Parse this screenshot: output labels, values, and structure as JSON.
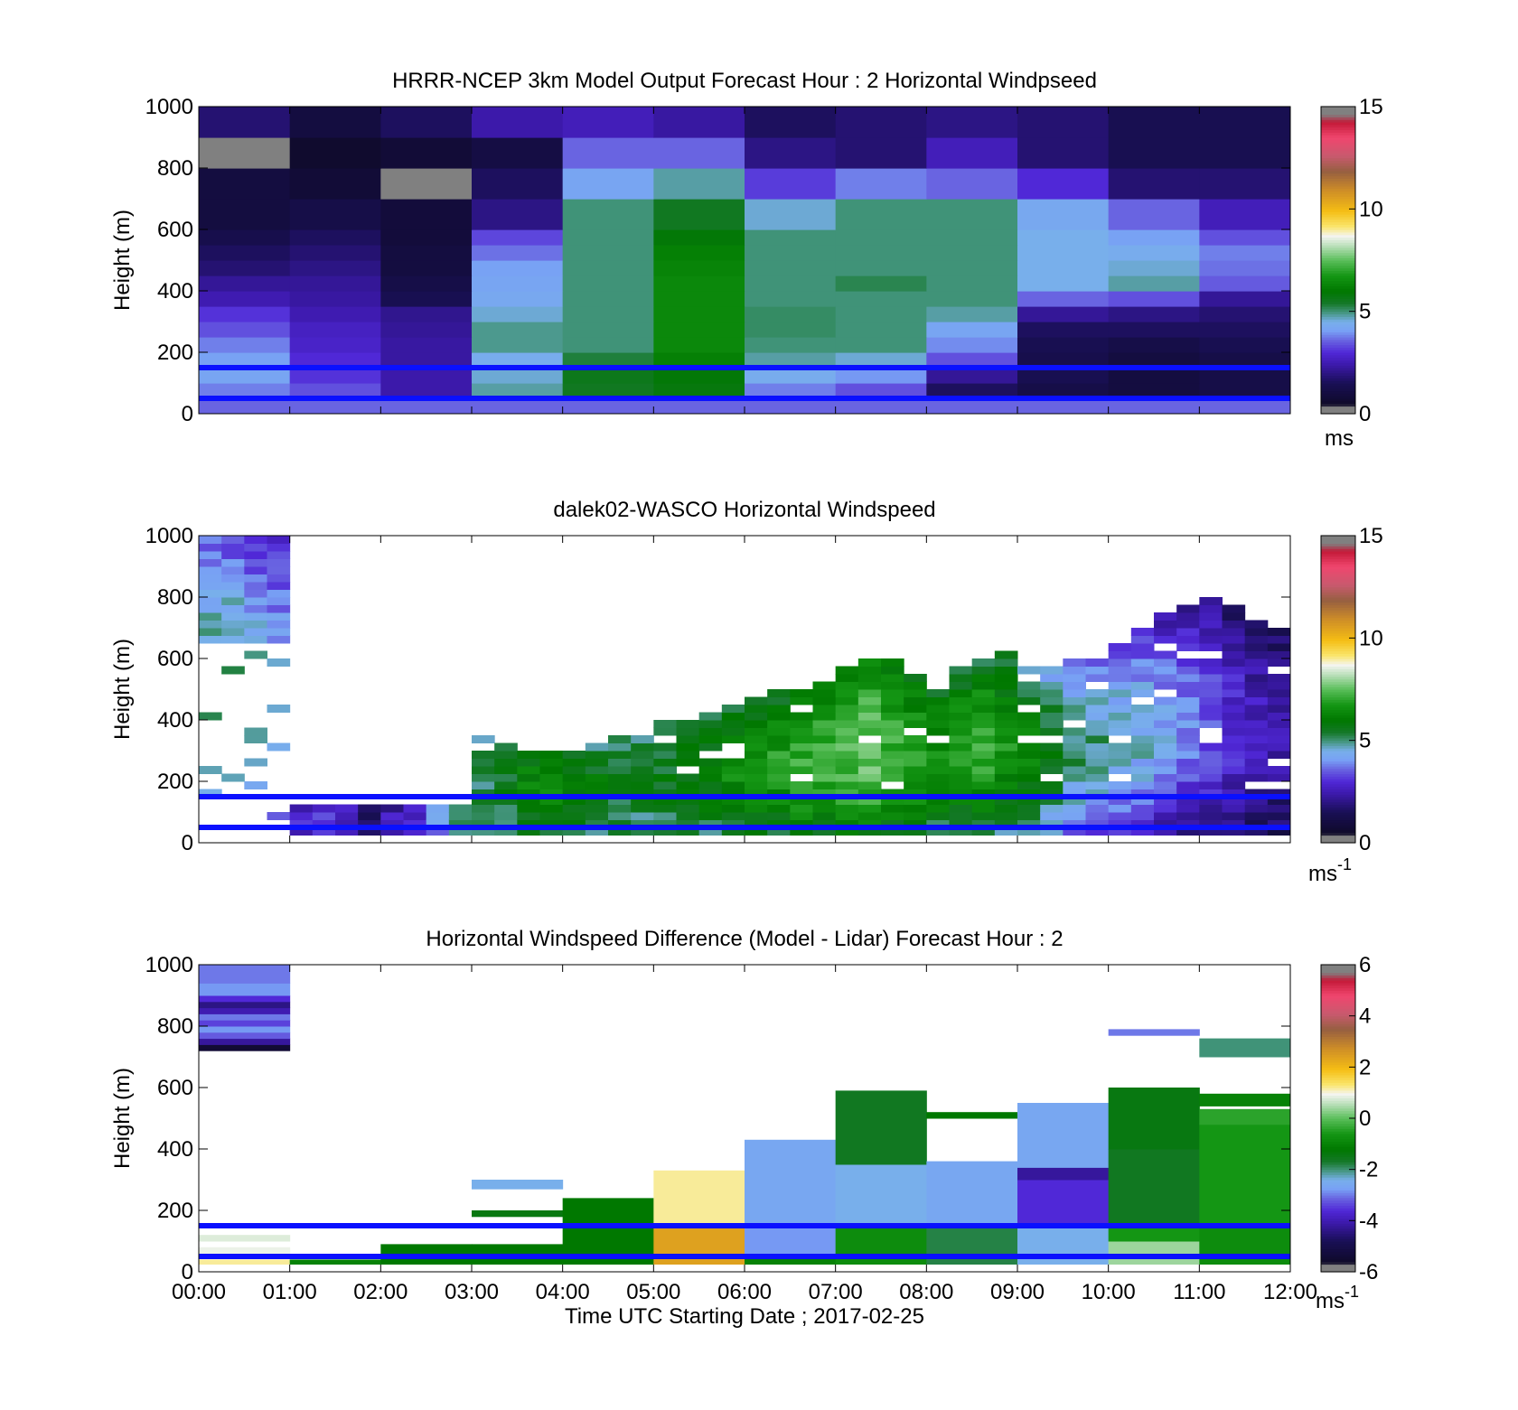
{
  "figure": {
    "xlabel": "Time UTC  Starting Date ; 2017-02-25",
    "x_ticks": [
      "00:00",
      "01:00",
      "02:00",
      "03:00",
      "04:00",
      "05:00",
      "06:00",
      "07:00",
      "08:00",
      "09:00",
      "10:00",
      "11:00",
      "12:00"
    ],
    "ylabel": "Height (m)"
  },
  "chart_data": [
    {
      "type": "heatmap",
      "title": "HRRR-NCEP 3km Model Output   Forecast Hour : 2 Horizontal Windpseed",
      "ylabel": "Height (m)",
      "xlim": [
        0,
        12
      ],
      "ylim": [
        0,
        1000
      ],
      "y_ticks": [
        0,
        200,
        400,
        600,
        800,
        1000
      ],
      "colorbar": {
        "range": [
          0,
          15
        ],
        "ticks": [
          0,
          5,
          10,
          15
        ],
        "unit": "ms"
      },
      "reference_lines_m": [
        50,
        150
      ],
      "levels_m": [
        0,
        50,
        100,
        150,
        200,
        250,
        300,
        350,
        400,
        450,
        500,
        550,
        600,
        700,
        800,
        900,
        1000
      ],
      "columns_hour_start": [
        0,
        1,
        2,
        3,
        4,
        5,
        6,
        7,
        8,
        9,
        10,
        11
      ],
      "values": [
        [
          3.6,
          3.6,
          3.6,
          3.6,
          3.6,
          3.6,
          3.6,
          3.6,
          3.6,
          3.6,
          3.6,
          3.6
        ],
        [
          3.8,
          3.4,
          2.4,
          4.8,
          5.5,
          5.8,
          3.8,
          3.4,
          1.6,
          1.2,
          1.0,
          1.2
        ],
        [
          4.2,
          3.1,
          2.4,
          4.6,
          5.6,
          5.9,
          4.4,
          4.0,
          2.2,
          1.4,
          1.0,
          1.2
        ],
        [
          4.1,
          3.0,
          2.3,
          4.4,
          5.3,
          6.2,
          4.8,
          4.6,
          3.4,
          1.3,
          1.0,
          1.2
        ],
        [
          3.8,
          2.8,
          2.3,
          4.9,
          5.0,
          6.4,
          5.0,
          5.0,
          3.9,
          1.4,
          1.2,
          1.4
        ],
        [
          3.4,
          2.7,
          2.2,
          4.9,
          5.0,
          6.4,
          5.1,
          5.0,
          4.2,
          1.6,
          1.6,
          1.6
        ],
        [
          3.1,
          2.5,
          2.1,
          4.6,
          5.0,
          6.4,
          5.1,
          5.0,
          4.8,
          2.2,
          2.0,
          1.8
        ],
        [
          2.5,
          2.3,
          1.4,
          4.3,
          5.0,
          6.4,
          5.0,
          5.0,
          5.0,
          3.6,
          3.4,
          2.2
        ],
        [
          2.2,
          2.2,
          1.2,
          4.2,
          5.0,
          6.4,
          5.0,
          5.2,
          5.0,
          4.5,
          4.8,
          3.5
        ],
        [
          1.8,
          2.0,
          1.0,
          4.1,
          5.0,
          6.3,
          5.0,
          5.0,
          5.0,
          4.5,
          4.6,
          3.7
        ],
        [
          1.6,
          1.8,
          1.0,
          3.7,
          5.0,
          6.2,
          5.0,
          5.0,
          5.0,
          4.5,
          4.4,
          3.8
        ],
        [
          1.3,
          1.6,
          0.9,
          3.3,
          5.0,
          5.9,
          5.0,
          5.0,
          5.0,
          4.5,
          4.1,
          3.4
        ],
        [
          1.0,
          1.2,
          0.9,
          2.0,
          5.0,
          5.5,
          4.6,
          5.0,
          5.0,
          4.3,
          3.6,
          2.6
        ],
        [
          1.0,
          0.8,
          0.2,
          1.6,
          4.2,
          4.8,
          3.2,
          3.8,
          3.6,
          3.0,
          1.8,
          1.8
        ],
        [
          0.2,
          0.6,
          0.8,
          1.1,
          3.6,
          3.6,
          2.0,
          1.8,
          2.6,
          1.8,
          1.4,
          1.4
        ],
        [
          1.8,
          1.0,
          1.6,
          2.4,
          2.6,
          2.3,
          1.6,
          1.8,
          2.0,
          1.8,
          1.4,
          1.4
        ]
      ]
    },
    {
      "type": "heatmap",
      "title": "dalek02-WASCO  Horizontal Windspeed",
      "ylabel": "Height (m)",
      "xlim": [
        0,
        12
      ],
      "ylim": [
        0,
        1000
      ],
      "y_ticks": [
        0,
        200,
        400,
        600,
        800,
        1000
      ],
      "colorbar": {
        "range": [
          0,
          15
        ],
        "ticks": [
          0,
          5,
          10,
          15
        ],
        "unit": "ms",
        "unit_exponent": "-1"
      },
      "reference_lines_m": [
        50,
        150
      ],
      "time_bin_hours": 0.25,
      "height_bin_m": 25,
      "profiles": [
        {
          "t": 0.0,
          "top": 1000,
          "low": 2.6,
          "high": 4.8,
          "note": "sparse"
        },
        {
          "t": 0.25,
          "top": 1000,
          "low": 2.4,
          "high": 4.9,
          "note": "sparse"
        },
        {
          "t": 0.5,
          "top": 1000,
          "low": 2.2,
          "high": 4.6,
          "note": "sparse"
        },
        {
          "t": 0.75,
          "top": 980,
          "low": 2.0,
          "high": 4.2,
          "note": "sparse"
        },
        {
          "t": 1.0,
          "top": 120,
          "low": 2.6,
          "high": 2.8
        },
        {
          "t": 1.25,
          "top": 120,
          "low": 2.8,
          "high": 3.0
        },
        {
          "t": 1.5,
          "top": 120,
          "low": 2.4,
          "high": 2.4
        },
        {
          "t": 1.75,
          "top": 120,
          "low": 1.6,
          "high": 1.8
        },
        {
          "t": 2.0,
          "top": 110,
          "low": 2.2,
          "high": 2.6
        },
        {
          "t": 2.25,
          "top": 110,
          "low": 2.8,
          "high": 3.0
        },
        {
          "t": 2.5,
          "top": 110,
          "low": 3.6,
          "high": 4.6
        },
        {
          "t": 2.75,
          "top": 110,
          "low": 4.8,
          "high": 4.8
        },
        {
          "t": 3.0,
          "top": 360,
          "low": 4.6,
          "high": 5.2
        },
        {
          "t": 3.25,
          "top": 320,
          "low": 4.8,
          "high": 5.6
        },
        {
          "t": 3.5,
          "top": 300,
          "low": 4.9,
          "high": 6.2
        },
        {
          "t": 3.75,
          "top": 300,
          "low": 4.8,
          "high": 6.4
        },
        {
          "t": 4.0,
          "top": 300,
          "low": 4.8,
          "high": 6.0
        },
        {
          "t": 4.25,
          "top": 320,
          "low": 4.6,
          "high": 5.8
        },
        {
          "t": 4.5,
          "top": 340,
          "low": 4.6,
          "high": 5.6
        },
        {
          "t": 4.75,
          "top": 360,
          "low": 4.8,
          "high": 5.4
        },
        {
          "t": 5.0,
          "top": 380,
          "low": 4.6,
          "high": 5.6
        },
        {
          "t": 5.25,
          "top": 400,
          "low": 4.8,
          "high": 5.8
        },
        {
          "t": 5.5,
          "top": 420,
          "low": 4.8,
          "high": 6.0
        },
        {
          "t": 5.75,
          "top": 440,
          "low": 4.9,
          "high": 6.4
        },
        {
          "t": 6.0,
          "top": 460,
          "low": 4.8,
          "high": 6.6
        },
        {
          "t": 6.25,
          "top": 480,
          "low": 4.6,
          "high": 6.8
        },
        {
          "t": 6.5,
          "top": 500,
          "low": 4.8,
          "high": 7.0
        },
        {
          "t": 6.75,
          "top": 520,
          "low": 4.8,
          "high": 7.2
        },
        {
          "t": 7.0,
          "top": 560,
          "low": 4.8,
          "high": 7.4
        },
        {
          "t": 7.25,
          "top": 600,
          "low": 5.0,
          "high": 7.6
        },
        {
          "t": 7.5,
          "top": 580,
          "low": 4.8,
          "high": 7.2
        },
        {
          "t": 7.75,
          "top": 540,
          "low": 4.8,
          "high": 6.8
        },
        {
          "t": 8.0,
          "top": 520,
          "low": 4.6,
          "high": 6.4
        },
        {
          "t": 8.25,
          "top": 560,
          "low": 4.4,
          "high": 6.8
        },
        {
          "t": 8.5,
          "top": 600,
          "low": 4.2,
          "high": 7.0
        },
        {
          "t": 8.75,
          "top": 620,
          "low": 4.0,
          "high": 6.6
        },
        {
          "t": 9.0,
          "top": 600,
          "low": 3.6,
          "high": 6.2
        },
        {
          "t": 9.25,
          "top": 560,
          "low": 3.2,
          "high": 5.6
        },
        {
          "t": 9.5,
          "top": 580,
          "low": 2.6,
          "high": 5.0
        },
        {
          "t": 9.75,
          "top": 600,
          "low": 2.2,
          "high": 4.9
        },
        {
          "t": 10.0,
          "top": 640,
          "low": 1.8,
          "high": 4.8
        },
        {
          "t": 10.25,
          "top": 700,
          "low": 1.4,
          "high": 4.6
        },
        {
          "t": 10.5,
          "top": 740,
          "low": 1.2,
          "high": 4.2
        },
        {
          "t": 10.75,
          "top": 760,
          "low": 1.2,
          "high": 3.8
        },
        {
          "t": 11.0,
          "top": 780,
          "low": 1.0,
          "high": 3.4
        },
        {
          "t": 11.25,
          "top": 760,
          "low": 0.8,
          "high": 3.0
        },
        {
          "t": 11.5,
          "top": 720,
          "low": 0.8,
          "high": 2.6
        },
        {
          "t": 11.75,
          "top": 700,
          "low": 0.8,
          "high": 2.4
        }
      ]
    },
    {
      "type": "heatmap",
      "title": "Horizontal Windspeed Difference (Model - Lidar) Forecast Hour : 2",
      "xlabel": "Time UTC  Starting Date ; 2017-02-25",
      "ylabel": "Height (m)",
      "xlim": [
        0,
        12
      ],
      "ylim": [
        0,
        1000
      ],
      "y_ticks": [
        0,
        200,
        400,
        600,
        800,
        1000
      ],
      "colorbar": {
        "range": [
          -6,
          6
        ],
        "ticks": [
          -6,
          -4,
          -2,
          0,
          2,
          4,
          6
        ],
        "unit": "ms",
        "unit_exponent": "-1"
      },
      "reference_lines_m": [
        50,
        150
      ],
      "columns": [
        {
          "hour": 0,
          "blocks": [
            [
              25,
              40,
              1.2
            ],
            [
              60,
              80,
              0.9
            ],
            [
              100,
              120,
              0.8
            ],
            [
              720,
              740,
              -5.4
            ],
            [
              740,
              760,
              -4.2
            ],
            [
              760,
              780,
              -3.2
            ],
            [
              780,
              800,
              -2.8
            ],
            [
              800,
              820,
              -3.4
            ],
            [
              820,
              840,
              -3.0
            ],
            [
              840,
              860,
              -4.0
            ],
            [
              860,
              880,
              -4.4
            ],
            [
              880,
              900,
              -3.6
            ],
            [
              900,
              940,
              -2.8
            ],
            [
              940,
              1000,
              -3.0
            ]
          ]
        },
        {
          "hour": 1,
          "blocks": [
            [
              25,
              40,
              -1.0
            ]
          ]
        },
        {
          "hour": 2,
          "blocks": [
            [
              25,
              90,
              -1.2
            ]
          ]
        },
        {
          "hour": 3,
          "blocks": [
            [
              25,
              90,
              -1.2
            ],
            [
              180,
              200,
              -1.4
            ],
            [
              270,
              300,
              -2.4
            ]
          ]
        },
        {
          "hour": 4,
          "blocks": [
            [
              25,
              240,
              -1.2
            ]
          ]
        },
        {
          "hour": 5,
          "blocks": [
            [
              25,
              160,
              2.4
            ],
            [
              160,
              330,
              1.2
            ]
          ]
        },
        {
          "hour": 6,
          "blocks": [
            [
              25,
              60,
              -1.0
            ],
            [
              60,
              150,
              -2.8
            ],
            [
              150,
              430,
              -2.6
            ]
          ]
        },
        {
          "hour": 7,
          "blocks": [
            [
              25,
              150,
              -0.8
            ],
            [
              150,
              350,
              -2.4
            ],
            [
              350,
              590,
              -1.6
            ]
          ]
        },
        {
          "hour": 8,
          "blocks": [
            [
              25,
              150,
              -1.8
            ],
            [
              150,
              360,
              -2.6
            ],
            [
              500,
              520,
              -1.2
            ]
          ]
        },
        {
          "hour": 9,
          "blocks": [
            [
              25,
              150,
              -2.4
            ],
            [
              150,
              300,
              -3.6
            ],
            [
              300,
              340,
              -4.2
            ],
            [
              340,
              550,
              -2.6
            ]
          ]
        },
        {
          "hour": 10,
          "blocks": [
            [
              25,
              100,
              0.4
            ],
            [
              100,
              150,
              -0.6
            ],
            [
              150,
              400,
              -1.6
            ],
            [
              400,
              600,
              -1.4
            ],
            [
              770,
              790,
              -3.0
            ]
          ]
        },
        {
          "hour": 11,
          "blocks": [
            [
              25,
              150,
              -0.8
            ],
            [
              150,
              480,
              -0.6
            ],
            [
              480,
              530,
              -0.4
            ],
            [
              540,
              580,
              -1.0
            ],
            [
              700,
              760,
              -2.0
            ]
          ]
        }
      ]
    }
  ]
}
